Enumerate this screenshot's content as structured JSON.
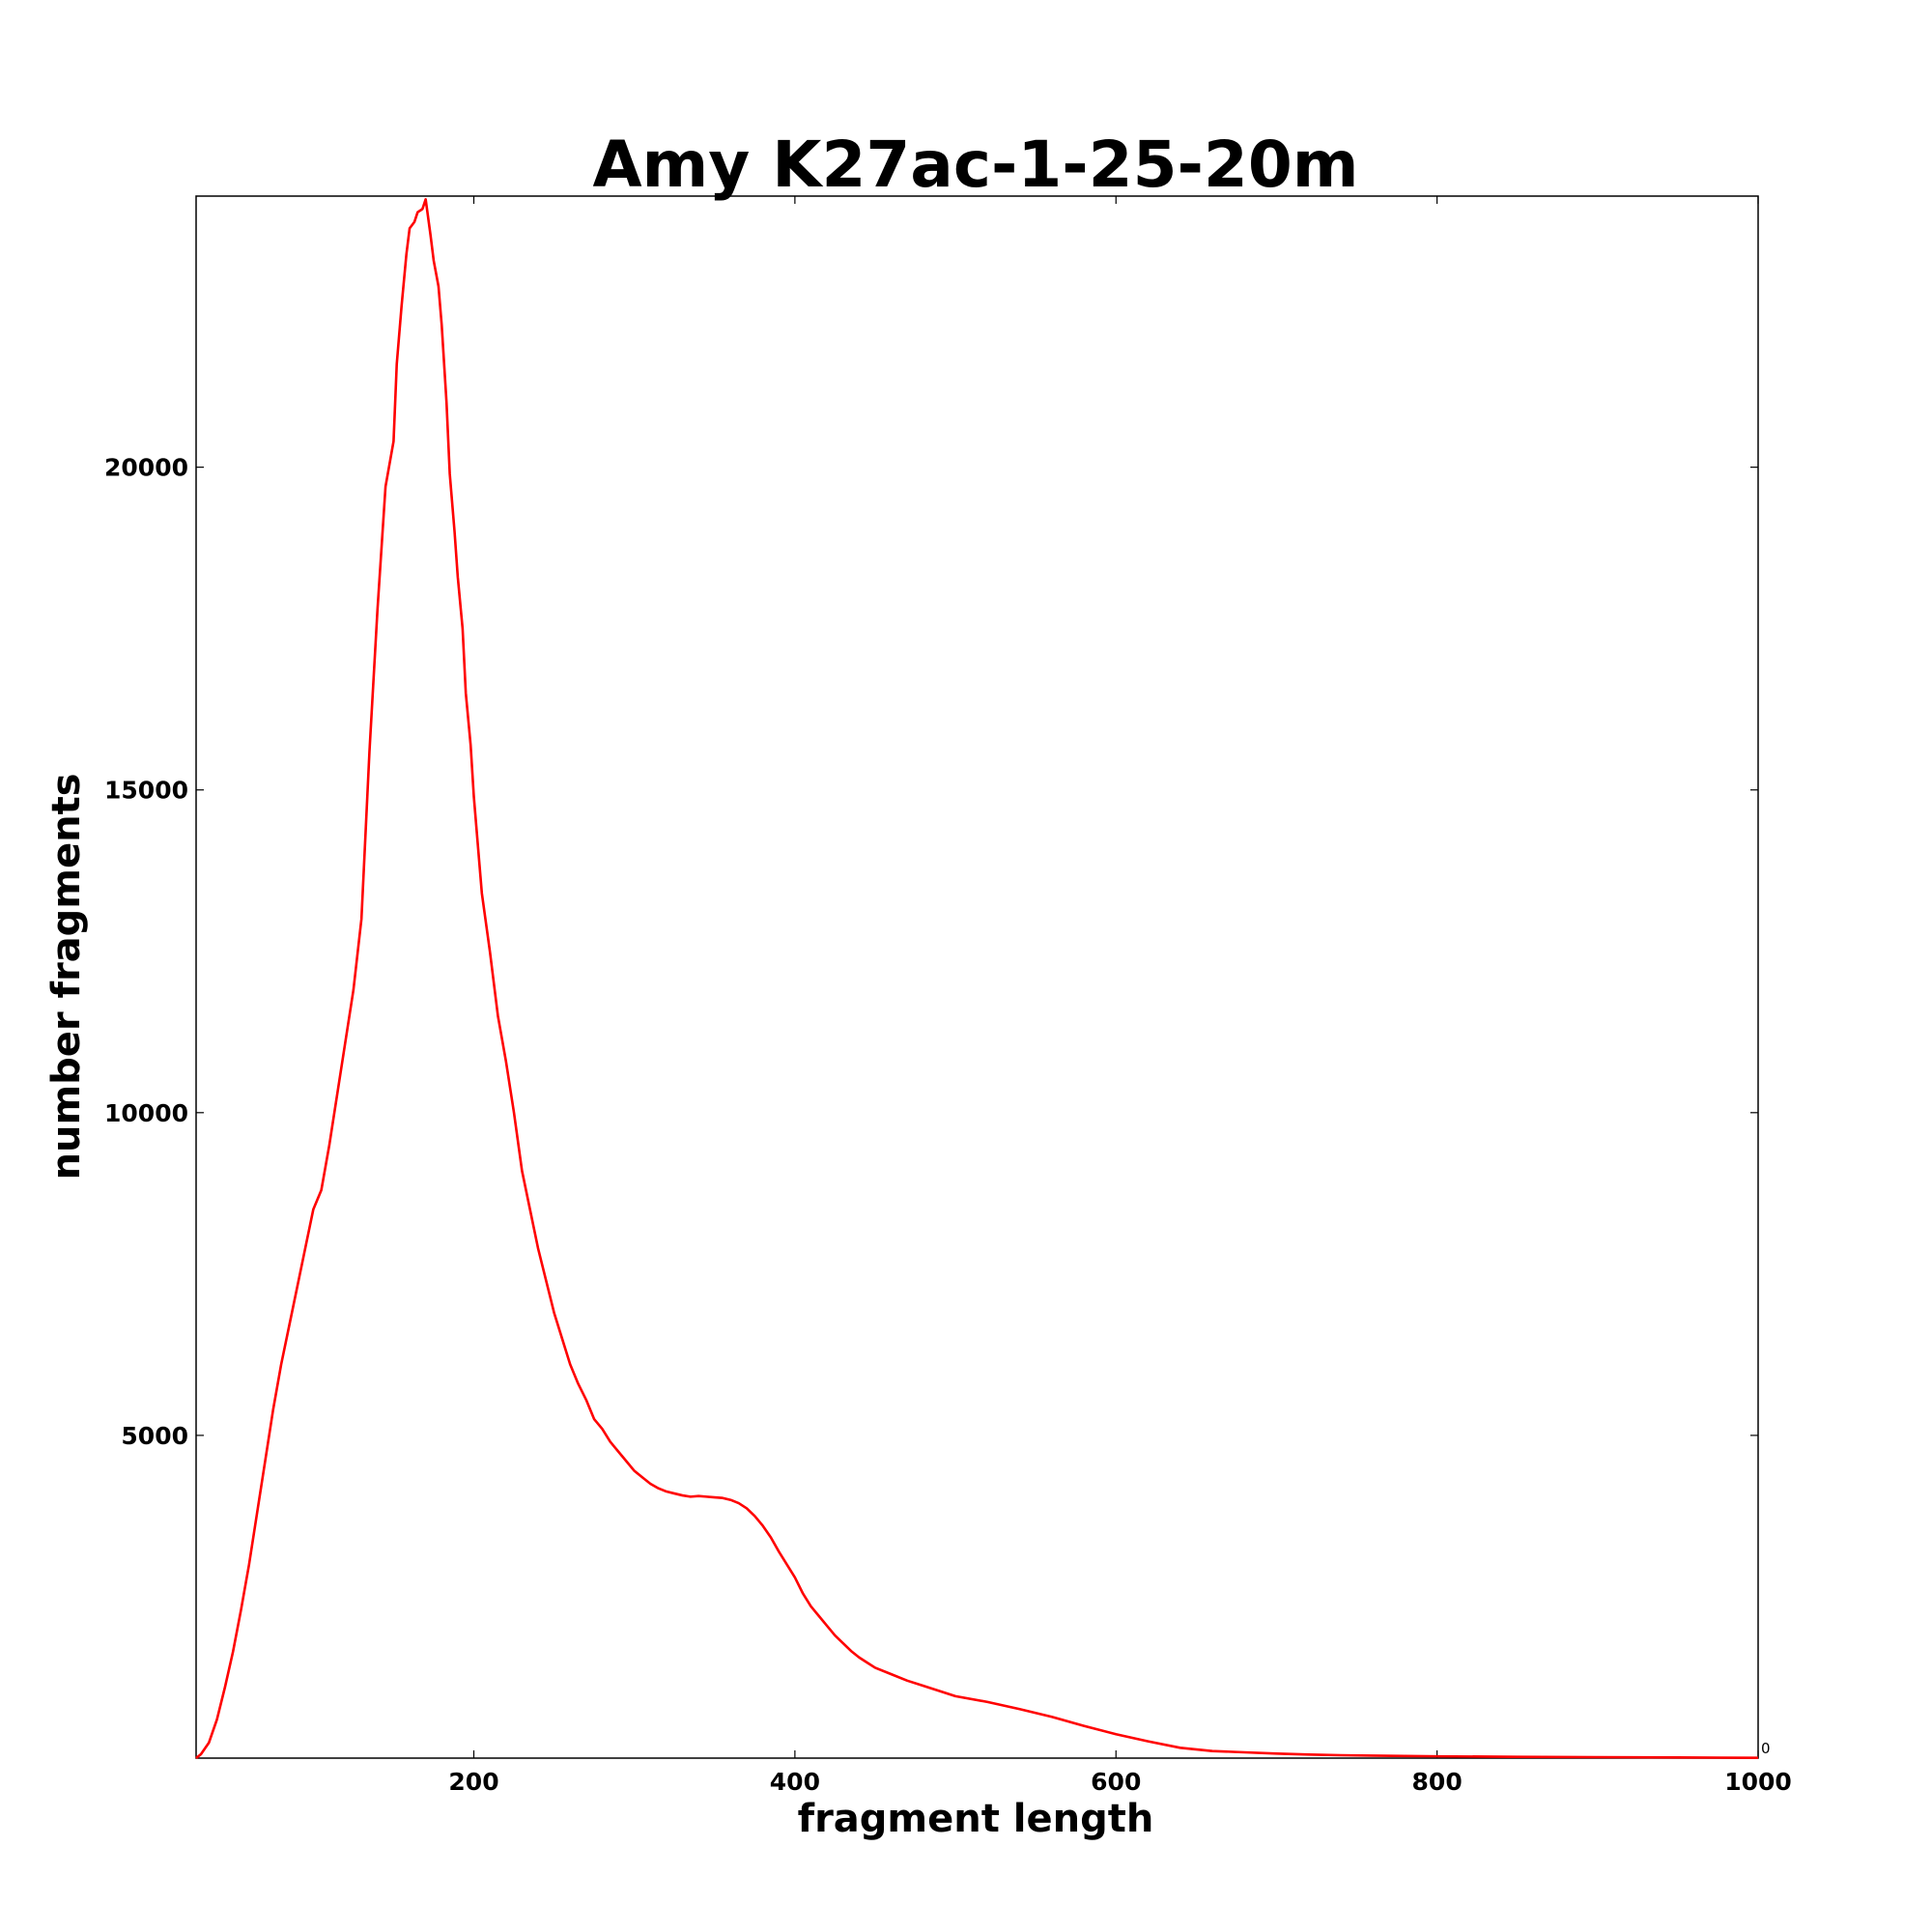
{
  "chart_data": {
    "type": "line",
    "title": "Amy K27ac-1-25-20m",
    "xlabel": "fragment length",
    "ylabel": "number fragments",
    "xlim": [
      27,
      1000
    ],
    "ylim": [
      0,
      24200
    ],
    "x_ticks": [
      200,
      400,
      600,
      800,
      1000
    ],
    "x_tick_labels": [
      "200",
      "400",
      "600",
      "800",
      "1000"
    ],
    "y_ticks": [
      5000,
      10000,
      15000,
      20000
    ],
    "y_tick_labels": [
      "5000",
      "10000",
      "15000",
      "20000"
    ],
    "extra_label": "0",
    "grid": false,
    "colors": {
      "series": "#ff0000",
      "axes": "#000000",
      "background": "#ffffff"
    },
    "series": [
      {
        "x": [
          27,
          30,
          35,
          40,
          45,
          50,
          55,
          60,
          65,
          70,
          75,
          80,
          85,
          90,
          95,
          100,
          105,
          110,
          115,
          120,
          125,
          130,
          135,
          140,
          145,
          150,
          152,
          155,
          158,
          160,
          163,
          165,
          168,
          170,
          173,
          175,
          178,
          180,
          183,
          185,
          188,
          190,
          193,
          195,
          198,
          200,
          205,
          210,
          215,
          220,
          225,
          230,
          235,
          240,
          245,
          250,
          255,
          260,
          265,
          270,
          275,
          280,
          285,
          290,
          295,
          300,
          305,
          310,
          315,
          320,
          325,
          330,
          335,
          340,
          345,
          350,
          355,
          360,
          365,
          370,
          375,
          380,
          385,
          390,
          395,
          400,
          405,
          410,
          415,
          420,
          425,
          430,
          435,
          440,
          445,
          450,
          460,
          470,
          480,
          490,
          500,
          520,
          540,
          560,
          580,
          600,
          620,
          640,
          660,
          680,
          700,
          720,
          740,
          760,
          780,
          800,
          850,
          900,
          950,
          1000
        ],
        "y": [
          0,
          60,
          240,
          600,
          1100,
          1650,
          2300,
          3000,
          3800,
          4600,
          5400,
          6100,
          6700,
          7300,
          7900,
          8500,
          8800,
          9500,
          10300,
          11100,
          11900,
          13000,
          15600,
          17800,
          19700,
          20400,
          21600,
          22500,
          23300,
          23700,
          23800,
          23950,
          24000,
          24150,
          23600,
          23200,
          22800,
          22200,
          21000,
          19900,
          19000,
          18300,
          17500,
          16500,
          15700,
          14900,
          13400,
          12500,
          11500,
          10800,
          10000,
          9100,
          8500,
          7900,
          7400,
          6900,
          6500,
          6100,
          5800,
          5550,
          5250,
          5100,
          4900,
          4750,
          4600,
          4450,
          4350,
          4250,
          4180,
          4130,
          4100,
          4070,
          4050,
          4060,
          4050,
          4040,
          4030,
          4000,
          3950,
          3870,
          3750,
          3600,
          3420,
          3200,
          3000,
          2800,
          2550,
          2350,
          2200,
          2050,
          1900,
          1780,
          1660,
          1560,
          1480,
          1400,
          1300,
          1200,
          1120,
          1040,
          960,
          870,
          760,
          640,
          500,
          370,
          260,
          160,
          110,
          90,
          70,
          55,
          45,
          38,
          32,
          28,
          20,
          15,
          10,
          5
        ]
      }
    ]
  }
}
